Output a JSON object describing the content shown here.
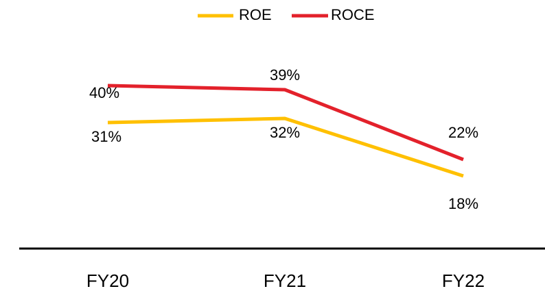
{
  "chart_data": {
    "type": "line",
    "categories": [
      "FY20",
      "FY21",
      "FY22"
    ],
    "series": [
      {
        "name": "ROE",
        "color": "#FFC000",
        "values": [
          31,
          32,
          18
        ],
        "value_labels": [
          "31%",
          "32%",
          "18%"
        ]
      },
      {
        "name": "ROCE",
        "color": "#E3212B",
        "values": [
          40,
          39,
          22
        ],
        "value_labels": [
          "40%",
          "39%",
          "22%"
        ]
      }
    ],
    "grid": false,
    "legend": "top"
  }
}
